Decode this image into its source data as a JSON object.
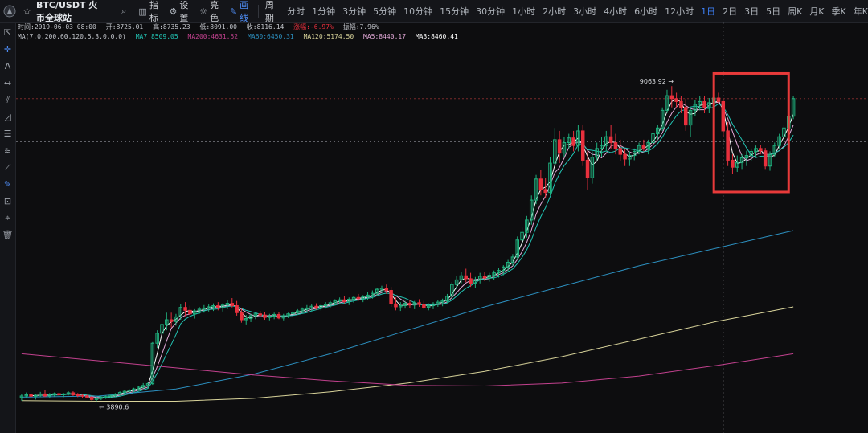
{
  "toolbar": {
    "symbol": "BTC/USDT 火币全球站",
    "indicators_label": "指标",
    "settings_label": "设置",
    "theme_label": "亮色",
    "draw_label": "画线",
    "period_label": "周期",
    "periods": [
      "分时",
      "1分钟",
      "3分钟",
      "5分钟",
      "10分钟",
      "15分钟",
      "30分钟",
      "1小时",
      "2小时",
      "3小时",
      "4小时",
      "6小时",
      "12小时",
      "1日",
      "2日",
      "3日",
      "5日",
      "周K",
      "月K",
      "季K",
      "年K"
    ],
    "active_period": "1日"
  },
  "info": {
    "time": "时间:2019-06-03 08:00",
    "open": "开:8725.01",
    "high": "高:8735.23",
    "low": "低:8091.00",
    "close": "收:8116.14",
    "change": "涨幅:-6.97%",
    "amplitude": "振幅:7.96%",
    "ma_settings": "MA(7,0,200,60,120,5,3,0,0,0)",
    "ma7": "MA7:8509.05",
    "ma200": "MA200:4631.52",
    "ma60": "MA60:6450.31",
    "ma120": "MA120:5174.50",
    "ma5": "MA5:8440.17",
    "ma3": "MA3:8460.41"
  },
  "colors": {
    "up": "#1fb17e",
    "down": "#e8303d",
    "ma3": "#ffffff",
    "ma5": "#e3a9d8",
    "ma7": "#22c4b4",
    "ma60": "#2c8fbf",
    "ma120": "#d8d39a",
    "ma200": "#c2418e",
    "highlight": "#e83a3a",
    "accent": "#3d7ff5"
  },
  "chart_data": {
    "type": "candlestick",
    "title": "BTC/USDT 1D",
    "ylim": [
      3300,
      9600
    ],
    "annotations": {
      "high_label": "9063.92",
      "low_label": "3890.6"
    },
    "highlight_box": {
      "start_index": 149,
      "end_index": 163,
      "color": "#e83a3a"
    },
    "candles": [
      {
        "o": 3755,
        "h": 3820,
        "l": 3700,
        "c": 3780
      },
      {
        "o": 3780,
        "h": 3840,
        "l": 3740,
        "c": 3800
      },
      {
        "o": 3800,
        "h": 3830,
        "l": 3750,
        "c": 3775
      },
      {
        "o": 3775,
        "h": 3820,
        "l": 3720,
        "c": 3790
      },
      {
        "o": 3790,
        "h": 3850,
        "l": 3760,
        "c": 3815
      },
      {
        "o": 3815,
        "h": 3880,
        "l": 3760,
        "c": 3780
      },
      {
        "o": 3780,
        "h": 3830,
        "l": 3740,
        "c": 3800
      },
      {
        "o": 3800,
        "h": 3840,
        "l": 3770,
        "c": 3820
      },
      {
        "o": 3820,
        "h": 3850,
        "l": 3780,
        "c": 3800
      },
      {
        "o": 3800,
        "h": 3830,
        "l": 3760,
        "c": 3815
      },
      {
        "o": 3815,
        "h": 3860,
        "l": 3790,
        "c": 3835
      },
      {
        "o": 3835,
        "h": 3860,
        "l": 3780,
        "c": 3800
      },
      {
        "o": 3800,
        "h": 3830,
        "l": 3760,
        "c": 3790
      },
      {
        "o": 3790,
        "h": 3820,
        "l": 3740,
        "c": 3780
      },
      {
        "o": 3780,
        "h": 3800,
        "l": 3740,
        "c": 3760
      },
      {
        "o": 3760,
        "h": 3790,
        "l": 3700,
        "c": 3720
      },
      {
        "o": 3720,
        "h": 3760,
        "l": 3690,
        "c": 3740
      },
      {
        "o": 3740,
        "h": 3780,
        "l": 3710,
        "c": 3760
      },
      {
        "o": 3760,
        "h": 3790,
        "l": 3730,
        "c": 3770
      },
      {
        "o": 3770,
        "h": 3800,
        "l": 3740,
        "c": 3790
      },
      {
        "o": 3790,
        "h": 3830,
        "l": 3760,
        "c": 3810
      },
      {
        "o": 3810,
        "h": 3860,
        "l": 3790,
        "c": 3840
      },
      {
        "o": 3840,
        "h": 3880,
        "l": 3800,
        "c": 3860
      },
      {
        "o": 3860,
        "h": 3900,
        "l": 3830,
        "c": 3880
      },
      {
        "o": 3880,
        "h": 3920,
        "l": 3840,
        "c": 3900
      },
      {
        "o": 3900,
        "h": 3950,
        "l": 3870,
        "c": 3930
      },
      {
        "o": 3930,
        "h": 4000,
        "l": 3910,
        "c": 3960
      },
      {
        "o": 3960,
        "h": 4010,
        "l": 3920,
        "c": 3990
      },
      {
        "o": 3990,
        "h": 4700,
        "l": 3970,
        "c": 4680
      },
      {
        "o": 4680,
        "h": 4900,
        "l": 4600,
        "c": 4850
      },
      {
        "o": 4850,
        "h": 5050,
        "l": 4780,
        "c": 5000
      },
      {
        "o": 5000,
        "h": 5200,
        "l": 4900,
        "c": 5080
      },
      {
        "o": 5080,
        "h": 5200,
        "l": 4950,
        "c": 5050
      },
      {
        "o": 5050,
        "h": 5180,
        "l": 4980,
        "c": 5130
      },
      {
        "o": 5130,
        "h": 5350,
        "l": 5080,
        "c": 5290
      },
      {
        "o": 5290,
        "h": 5380,
        "l": 5140,
        "c": 5240
      },
      {
        "o": 5240,
        "h": 5320,
        "l": 5120,
        "c": 5180
      },
      {
        "o": 5180,
        "h": 5260,
        "l": 5100,
        "c": 5230
      },
      {
        "o": 5230,
        "h": 5300,
        "l": 5180,
        "c": 5260
      },
      {
        "o": 5260,
        "h": 5330,
        "l": 5200,
        "c": 5280
      },
      {
        "o": 5280,
        "h": 5340,
        "l": 5220,
        "c": 5300
      },
      {
        "o": 5300,
        "h": 5360,
        "l": 5230,
        "c": 5320
      },
      {
        "o": 5320,
        "h": 5380,
        "l": 5240,
        "c": 5290
      },
      {
        "o": 5290,
        "h": 5360,
        "l": 5220,
        "c": 5330
      },
      {
        "o": 5330,
        "h": 5420,
        "l": 5260,
        "c": 5360
      },
      {
        "o": 5360,
        "h": 5450,
        "l": 5290,
        "c": 5320
      },
      {
        "o": 5320,
        "h": 5400,
        "l": 5150,
        "c": 5200
      },
      {
        "o": 5200,
        "h": 5270,
        "l": 5030,
        "c": 5080
      },
      {
        "o": 5080,
        "h": 5160,
        "l": 5000,
        "c": 5100
      },
      {
        "o": 5100,
        "h": 5180,
        "l": 5040,
        "c": 5150
      },
      {
        "o": 5150,
        "h": 5210,
        "l": 5090,
        "c": 5180
      },
      {
        "o": 5180,
        "h": 5230,
        "l": 5120,
        "c": 5160
      },
      {
        "o": 5160,
        "h": 5210,
        "l": 5080,
        "c": 5120
      },
      {
        "o": 5120,
        "h": 5180,
        "l": 5070,
        "c": 5140
      },
      {
        "o": 5140,
        "h": 5200,
        "l": 5090,
        "c": 5170
      },
      {
        "o": 5170,
        "h": 5210,
        "l": 5090,
        "c": 5110
      },
      {
        "o": 5110,
        "h": 5180,
        "l": 5070,
        "c": 5150
      },
      {
        "o": 5150,
        "h": 5200,
        "l": 5110,
        "c": 5180
      },
      {
        "o": 5180,
        "h": 5230,
        "l": 5130,
        "c": 5200
      },
      {
        "o": 5200,
        "h": 5260,
        "l": 5160,
        "c": 5230
      },
      {
        "o": 5230,
        "h": 5290,
        "l": 5190,
        "c": 5260
      },
      {
        "o": 5260,
        "h": 5330,
        "l": 5200,
        "c": 5280
      },
      {
        "o": 5280,
        "h": 5340,
        "l": 5230,
        "c": 5310
      },
      {
        "o": 5310,
        "h": 5360,
        "l": 5250,
        "c": 5290
      },
      {
        "o": 5290,
        "h": 5350,
        "l": 5240,
        "c": 5320
      },
      {
        "o": 5320,
        "h": 5380,
        "l": 5270,
        "c": 5340
      },
      {
        "o": 5340,
        "h": 5400,
        "l": 5290,
        "c": 5370
      },
      {
        "o": 5370,
        "h": 5430,
        "l": 5320,
        "c": 5400
      },
      {
        "o": 5400,
        "h": 5460,
        "l": 5340,
        "c": 5420
      },
      {
        "o": 5420,
        "h": 5480,
        "l": 5360,
        "c": 5390
      },
      {
        "o": 5390,
        "h": 5460,
        "l": 5330,
        "c": 5430
      },
      {
        "o": 5430,
        "h": 5490,
        "l": 5370,
        "c": 5460
      },
      {
        "o": 5460,
        "h": 5520,
        "l": 5400,
        "c": 5440
      },
      {
        "o": 5440,
        "h": 5500,
        "l": 5380,
        "c": 5470
      },
      {
        "o": 5470,
        "h": 5560,
        "l": 5420,
        "c": 5500
      },
      {
        "o": 5500,
        "h": 5580,
        "l": 5440,
        "c": 5530
      },
      {
        "o": 5530,
        "h": 5620,
        "l": 5480,
        "c": 5600
      },
      {
        "o": 5600,
        "h": 5660,
        "l": 5540,
        "c": 5620
      },
      {
        "o": 5620,
        "h": 5680,
        "l": 5520,
        "c": 5580
      },
      {
        "o": 5580,
        "h": 5640,
        "l": 5300,
        "c": 5350
      },
      {
        "o": 5350,
        "h": 5460,
        "l": 5240,
        "c": 5300
      },
      {
        "o": 5300,
        "h": 5380,
        "l": 5230,
        "c": 5320
      },
      {
        "o": 5320,
        "h": 5400,
        "l": 5270,
        "c": 5360
      },
      {
        "o": 5360,
        "h": 5420,
        "l": 5280,
        "c": 5330
      },
      {
        "o": 5330,
        "h": 5400,
        "l": 5260,
        "c": 5370
      },
      {
        "o": 5370,
        "h": 5430,
        "l": 5300,
        "c": 5340
      },
      {
        "o": 5340,
        "h": 5400,
        "l": 5260,
        "c": 5290
      },
      {
        "o": 5290,
        "h": 5360,
        "l": 5240,
        "c": 5320
      },
      {
        "o": 5320,
        "h": 5380,
        "l": 5260,
        "c": 5350
      },
      {
        "o": 5350,
        "h": 5410,
        "l": 5300,
        "c": 5380
      },
      {
        "o": 5380,
        "h": 5440,
        "l": 5310,
        "c": 5400
      },
      {
        "o": 5400,
        "h": 5520,
        "l": 5360,
        "c": 5480
      },
      {
        "o": 5480,
        "h": 5720,
        "l": 5430,
        "c": 5680
      },
      {
        "o": 5680,
        "h": 5820,
        "l": 5600,
        "c": 5760
      },
      {
        "o": 5760,
        "h": 5900,
        "l": 5700,
        "c": 5830
      },
      {
        "o": 5830,
        "h": 5950,
        "l": 5720,
        "c": 5780
      },
      {
        "o": 5780,
        "h": 5880,
        "l": 5640,
        "c": 5700
      },
      {
        "o": 5700,
        "h": 5810,
        "l": 5620,
        "c": 5760
      },
      {
        "o": 5760,
        "h": 5880,
        "l": 5700,
        "c": 5820
      },
      {
        "o": 5820,
        "h": 5900,
        "l": 5740,
        "c": 5790
      },
      {
        "o": 5790,
        "h": 5880,
        "l": 5730,
        "c": 5840
      },
      {
        "o": 5840,
        "h": 5920,
        "l": 5760,
        "c": 5880
      },
      {
        "o": 5880,
        "h": 5960,
        "l": 5800,
        "c": 5920
      },
      {
        "o": 5920,
        "h": 6010,
        "l": 5840,
        "c": 5980
      },
      {
        "o": 5980,
        "h": 6100,
        "l": 5900,
        "c": 6060
      },
      {
        "o": 6060,
        "h": 6200,
        "l": 6000,
        "c": 6150
      },
      {
        "o": 6150,
        "h": 6500,
        "l": 6100,
        "c": 6440
      },
      {
        "o": 6440,
        "h": 6650,
        "l": 6350,
        "c": 6570
      },
      {
        "o": 6570,
        "h": 6850,
        "l": 6480,
        "c": 6780
      },
      {
        "o": 6780,
        "h": 7200,
        "l": 6700,
        "c": 7120
      },
      {
        "o": 7120,
        "h": 7550,
        "l": 7050,
        "c": 7480
      },
      {
        "o": 7480,
        "h": 7640,
        "l": 7200,
        "c": 7300
      },
      {
        "o": 7300,
        "h": 7500,
        "l": 7150,
        "c": 7250
      },
      {
        "o": 7250,
        "h": 7850,
        "l": 7200,
        "c": 7750
      },
      {
        "o": 7750,
        "h": 8350,
        "l": 7700,
        "c": 8150
      },
      {
        "o": 8150,
        "h": 8300,
        "l": 7750,
        "c": 7920
      },
      {
        "o": 7920,
        "h": 8200,
        "l": 7850,
        "c": 8100
      },
      {
        "o": 8100,
        "h": 8250,
        "l": 8000,
        "c": 8180
      },
      {
        "o": 8180,
        "h": 8300,
        "l": 7950,
        "c": 8050
      },
      {
        "o": 8050,
        "h": 8400,
        "l": 7950,
        "c": 8300
      },
      {
        "o": 8300,
        "h": 8400,
        "l": 7700,
        "c": 7800
      },
      {
        "o": 7800,
        "h": 7950,
        "l": 7300,
        "c": 7500
      },
      {
        "o": 7500,
        "h": 7950,
        "l": 7400,
        "c": 7850
      },
      {
        "o": 7850,
        "h": 8100,
        "l": 7800,
        "c": 8000
      },
      {
        "o": 8000,
        "h": 8200,
        "l": 7850,
        "c": 8050
      },
      {
        "o": 8050,
        "h": 8300,
        "l": 7950,
        "c": 8200
      },
      {
        "o": 8200,
        "h": 8400,
        "l": 8000,
        "c": 8100
      },
      {
        "o": 8100,
        "h": 8250,
        "l": 7900,
        "c": 8000
      },
      {
        "o": 8000,
        "h": 8150,
        "l": 7780,
        "c": 7900
      },
      {
        "o": 7900,
        "h": 8000,
        "l": 7700,
        "c": 7820
      },
      {
        "o": 7820,
        "h": 7950,
        "l": 7700,
        "c": 7880
      },
      {
        "o": 7880,
        "h": 8000,
        "l": 7800,
        "c": 7950
      },
      {
        "o": 7950,
        "h": 8100,
        "l": 7900,
        "c": 8050
      },
      {
        "o": 8050,
        "h": 8150,
        "l": 7950,
        "c": 8000
      },
      {
        "o": 8000,
        "h": 8150,
        "l": 7900,
        "c": 8100
      },
      {
        "o": 8100,
        "h": 8300,
        "l": 8050,
        "c": 8250
      },
      {
        "o": 8250,
        "h": 8400,
        "l": 8150,
        "c": 8350
      },
      {
        "o": 8350,
        "h": 8700,
        "l": 8300,
        "c": 8650
      },
      {
        "o": 8650,
        "h": 9000,
        "l": 8600,
        "c": 8900
      },
      {
        "o": 8900,
        "h": 9063,
        "l": 8700,
        "c": 8850
      },
      {
        "o": 8850,
        "h": 8950,
        "l": 8700,
        "c": 8800
      },
      {
        "o": 8800,
        "h": 8900,
        "l": 8600,
        "c": 8700
      },
      {
        "o": 8700,
        "h": 8850,
        "l": 8300,
        "c": 8400
      },
      {
        "o": 8400,
        "h": 8700,
        "l": 8200,
        "c": 8650
      },
      {
        "o": 8650,
        "h": 8820,
        "l": 8550,
        "c": 8750
      },
      {
        "o": 8750,
        "h": 8900,
        "l": 8650,
        "c": 8800
      },
      {
        "o": 8800,
        "h": 8900,
        "l": 8600,
        "c": 8700
      },
      {
        "o": 8700,
        "h": 8860,
        "l": 8600,
        "c": 8780
      },
      {
        "o": 8780,
        "h": 8900,
        "l": 8700,
        "c": 8860
      },
      {
        "o": 8860,
        "h": 8950,
        "l": 8760,
        "c": 8800
      },
      {
        "o": 8800,
        "h": 8850,
        "l": 8200,
        "c": 8300
      },
      {
        "o": 8300,
        "h": 8450,
        "l": 7700,
        "c": 7800
      },
      {
        "o": 7800,
        "h": 7900,
        "l": 7560,
        "c": 7680
      },
      {
        "o": 7680,
        "h": 7880,
        "l": 7600,
        "c": 7760
      },
      {
        "o": 7760,
        "h": 7900,
        "l": 7650,
        "c": 7840
      },
      {
        "o": 7840,
        "h": 7960,
        "l": 7700,
        "c": 7880
      },
      {
        "o": 7880,
        "h": 8000,
        "l": 7780,
        "c": 7950
      },
      {
        "o": 7950,
        "h": 8050,
        "l": 7850,
        "c": 8000
      },
      {
        "o": 8000,
        "h": 8060,
        "l": 7900,
        "c": 7960
      },
      {
        "o": 7960,
        "h": 8010,
        "l": 7650,
        "c": 7700
      },
      {
        "o": 7700,
        "h": 7950,
        "l": 7620,
        "c": 7900
      },
      {
        "o": 7900,
        "h": 8100,
        "l": 7850,
        "c": 8050
      },
      {
        "o": 8050,
        "h": 8250,
        "l": 8000,
        "c": 8200
      },
      {
        "o": 8200,
        "h": 8400,
        "l": 8100,
        "c": 8350
      },
      {
        "o": 8350,
        "h": 8600,
        "l": 8300,
        "c": 8550
      },
      {
        "o": 8550,
        "h": 8900,
        "l": 8500,
        "c": 8850
      }
    ],
    "series": [
      {
        "name": "MA3",
        "type": "window",
        "period": 3,
        "color": "#ffffff"
      },
      {
        "name": "MA5",
        "type": "window",
        "period": 5,
        "color": "#e3a9d8"
      },
      {
        "name": "MA7",
        "type": "window",
        "period": 7,
        "color": "#22c4b4"
      },
      {
        "name": "MA60",
        "type": "anchored",
        "color": "#2c8fbf",
        "values": [
          3760,
          3780,
          3900,
          4150,
          4500,
          4900,
          5300,
          5650,
          6000,
          6300,
          6600
        ]
      },
      {
        "name": "MA120",
        "type": "anchored",
        "color": "#d8d39a",
        "values": [
          3700,
          3690,
          3690,
          3740,
          3850,
          4000,
          4200,
          4450,
          4750,
          5050,
          5300
        ]
      },
      {
        "name": "MA200",
        "type": "anchored",
        "color": "#c2418e",
        "values": [
          4500,
          4380,
          4260,
          4140,
          4040,
          3960,
          3950,
          4000,
          4120,
          4300,
          4500
        ]
      }
    ]
  }
}
